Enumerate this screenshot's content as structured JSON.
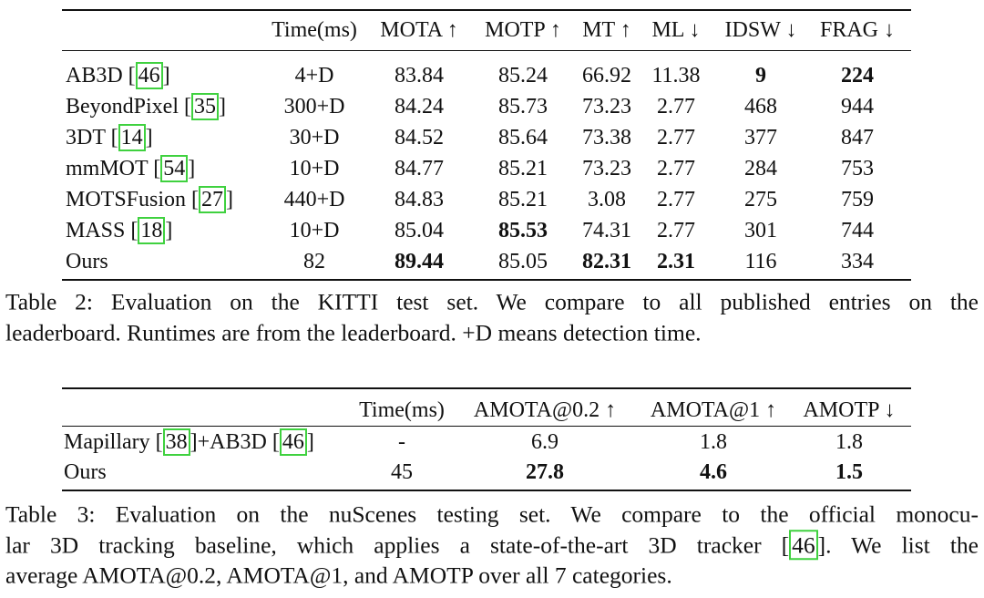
{
  "table2": {
    "columns": [
      "Time(ms)",
      "MOTA ↑",
      "MOTP ↑",
      "MT ↑",
      "ML ↓",
      "IDSW ↓",
      "FRAG ↓"
    ],
    "rows": [
      {
        "method": "AB3D [46]",
        "cells": [
          "4+D",
          "83.84",
          "85.24",
          "66.92",
          "11.38",
          "9",
          "224"
        ],
        "bold": [
          5,
          6
        ]
      },
      {
        "method": "BeyondPixel [35]",
        "cells": [
          "300+D",
          "84.24",
          "85.73",
          "73.23",
          "2.77",
          "468",
          "944"
        ],
        "bold": []
      },
      {
        "method": "3DT [14]",
        "cells": [
          "30+D",
          "84.52",
          "85.64",
          "73.38",
          "2.77",
          "377",
          "847"
        ],
        "bold": []
      },
      {
        "method": "mmMOT [54]",
        "cells": [
          "10+D",
          "84.77",
          "85.21",
          "73.23",
          "2.77",
          "284",
          "753"
        ],
        "bold": []
      },
      {
        "method": "MOTSFusion [27]",
        "cells": [
          "440+D",
          "84.83",
          "85.21",
          "3.08",
          "2.77",
          "275",
          "759"
        ],
        "bold": []
      },
      {
        "method": "MASS [18]",
        "cells": [
          "10+D",
          "85.04",
          "85.53",
          "74.31",
          "2.77",
          "301",
          "744"
        ],
        "bold": [
          2
        ]
      },
      {
        "method": "Ours",
        "cells": [
          "82",
          "89.44",
          "85.05",
          "82.31",
          "2.31",
          "116",
          "334"
        ],
        "bold": [
          1,
          3,
          4
        ]
      }
    ],
    "caption": [
      "Table 2: Evaluation on the KITTI test set. We compare to all published entries on the",
      "leaderboard. Runtimes are from the leaderboard. +D means detection time."
    ]
  },
  "table3": {
    "columns": [
      "Time(ms)",
      "AMOTA@0.2 ↑",
      "AMOTA@1 ↑",
      "AMOTP ↓"
    ],
    "rows": [
      {
        "method": "Mapillary [38]+AB3D [46]",
        "cells": [
          "-",
          "6.9",
          "1.8",
          "1.8"
        ],
        "bold": []
      },
      {
        "method": "Ours",
        "cells": [
          "45",
          "27.8",
          "4.6",
          "1.5"
        ],
        "bold": [
          1,
          2,
          3
        ]
      }
    ],
    "caption": [
      "Table 3: Evaluation on the nuScenes testing set. We compare to the official monocu-",
      "lar 3D tracking baseline, which applies a state-of-the-art 3D tracker [46]. We list the",
      "average AMOTA@0.2, AMOTA@1, and AMOTP over all 7 categories."
    ]
  }
}
